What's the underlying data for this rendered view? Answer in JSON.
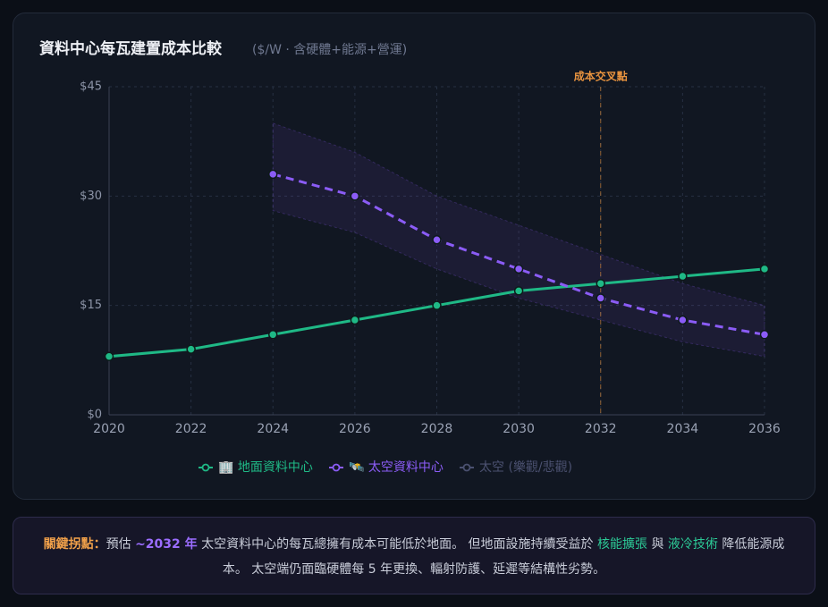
{
  "chart_data": {
    "type": "line",
    "title": "資料中心每瓦建置成本比較",
    "subtitle": "($/W · 含硬體+能源+營運)",
    "x": [
      2020,
      2022,
      2024,
      2026,
      2028,
      2030,
      2032,
      2034,
      2036
    ],
    "xlim": [
      2020,
      2036
    ],
    "xticks": [
      2020,
      2022,
      2024,
      2026,
      2028,
      2030,
      2032,
      2034,
      2036
    ],
    "ylim": [
      0,
      45
    ],
    "yticks": [
      {
        "value": 0,
        "label": "$0"
      },
      {
        "value": 15,
        "label": "$15"
      },
      {
        "value": 30,
        "label": "$30"
      },
      {
        "value": 45,
        "label": "$45"
      }
    ],
    "grid": true,
    "series": [
      {
        "name": "🏢 地面資料中心",
        "color": "#1fb986",
        "dashed": false,
        "values": [
          8,
          9,
          11,
          13,
          15,
          17,
          18,
          19,
          20
        ]
      },
      {
        "name": "🛰️ 太空資料中心",
        "color": "#8b5cf6",
        "dashed": true,
        "values": [
          null,
          null,
          33,
          30,
          24,
          20,
          16,
          13,
          11
        ]
      }
    ],
    "band": {
      "name": "太空 (樂觀/悲觀)",
      "color": "#8b5cf6",
      "x": [
        2024,
        2026,
        2028,
        2030,
        2032,
        2034,
        2036
      ],
      "upper": [
        40,
        36,
        30,
        26,
        22,
        18,
        15
      ],
      "lower": [
        28,
        25,
        20,
        16,
        13,
        10,
        8
      ]
    },
    "annotation": {
      "x": 2032,
      "label": "成本交叉點",
      "color": "#e8933f"
    }
  },
  "note": {
    "parts": [
      "關鍵拐點：",
      "預估 ",
      "~2032 年",
      " 太空資料中心的每瓦總擁有成本可能低於地面。 但地面設施持續受益於 ",
      "核能擴張",
      " 與 ",
      "液冷技術",
      " 降低能源成本。 太空端仍面臨硬體每 5 年更換、輻射防護、延遲等結構性劣勢。"
    ]
  }
}
